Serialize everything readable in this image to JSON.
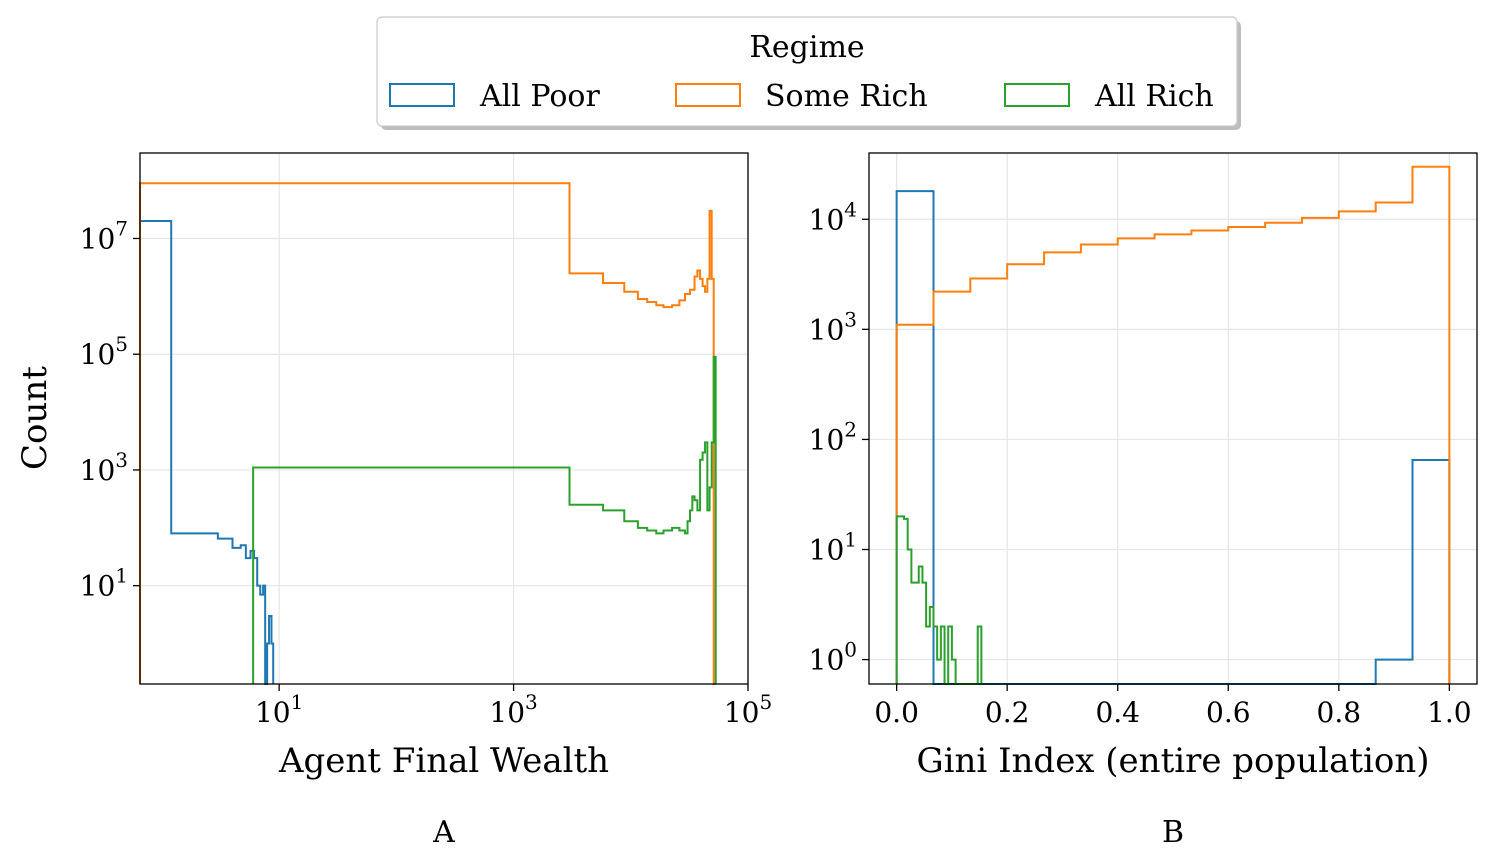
{
  "legend": {
    "title": "Regime",
    "entries": [
      {
        "label": "All Poor",
        "color": "#1f77b4"
      },
      {
        "label": "Some Rich",
        "color": "#ff7f0e"
      },
      {
        "label": "All Rich",
        "color": "#2ca02c"
      }
    ]
  },
  "chart_data": [
    {
      "panel_label": "A",
      "type": "histogram-step",
      "xlabel": "Agent Final Wealth",
      "ylabel": "Count",
      "xscale": "log",
      "yscale": "log",
      "xlim": [
        0.65,
        100000
      ],
      "ylim": [
        0.2,
        300000000
      ],
      "xticks": [
        {
          "value": 10,
          "mant": "10",
          "exp": "1"
        },
        {
          "value": 1000,
          "mant": "10",
          "exp": "3"
        },
        {
          "value": 100000,
          "mant": "10",
          "exp": "5"
        }
      ],
      "yticks": [
        {
          "value": 10,
          "mant": "10",
          "exp": "1"
        },
        {
          "value": 1000,
          "mant": "10",
          "exp": "3"
        },
        {
          "value": 100000,
          "mant": "10",
          "exp": "5"
        },
        {
          "value": 10000000,
          "mant": "10",
          "exp": "7"
        }
      ],
      "grid": true,
      "series": [
        {
          "name": "All Poor",
          "color": "#1f77b4",
          "edges": [
            0.65,
            1.2,
            2.0,
            3.0,
            4.0,
            4.7,
            5.2,
            5.7,
            6.1,
            6.5,
            6.9,
            7.1,
            7.3,
            7.6,
            7.9,
            8.2,
            8.6,
            8.9
          ],
          "counts": [
            20000000,
            80,
            80,
            65,
            45,
            50,
            30,
            40,
            30,
            10,
            7,
            7,
            10,
            0,
            1,
            3,
            1
          ]
        },
        {
          "name": "Some Rich",
          "color": "#ff7f0e",
          "edges": [
            0.65,
            3000,
            5800,
            8800,
            11500,
            13800,
            16500,
            19000,
            22500,
            26000,
            29000,
            32000,
            35000,
            37000,
            39000,
            41000,
            43000,
            45000,
            47000,
            49000,
            51000,
            53000
          ],
          "counts": [
            90000000,
            2500000,
            1700000,
            1200000,
            900000,
            800000,
            700000,
            650000,
            700000,
            850000,
            1100000,
            1300000,
            2200000,
            2800000,
            2000000,
            1500000,
            1200000,
            2000000,
            30000000,
            2000000,
            0
          ]
        },
        {
          "name": "All Rich",
          "color": "#2ca02c",
          "edges": [
            6.0,
            3000,
            5800,
            8800,
            11500,
            13800,
            16500,
            19000,
            22500,
            26000,
            29000,
            30500,
            32000,
            33500,
            35000,
            37000,
            39000,
            41000,
            43000,
            45000,
            47000,
            49000,
            51000,
            53000
          ],
          "counts": [
            1100,
            250,
            200,
            130,
            100,
            90,
            80,
            90,
            100,
            90,
            80,
            130,
            200,
            350,
            300,
            200,
            1500,
            2000,
            3000,
            200,
            500,
            3000,
            90000
          ]
        }
      ]
    },
    {
      "panel_label": "B",
      "type": "histogram-step",
      "xlabel": "Gini Index (entire population)",
      "ylabel": "",
      "xscale": "linear",
      "yscale": "log",
      "xlim": [
        -0.05,
        1.05
      ],
      "ylim": [
        0.6,
        40000
      ],
      "xticks": [
        {
          "value": 0.0,
          "text": "0.0"
        },
        {
          "value": 0.2,
          "text": "0.2"
        },
        {
          "value": 0.4,
          "text": "0.4"
        },
        {
          "value": 0.6,
          "text": "0.6"
        },
        {
          "value": 0.8,
          "text": "0.8"
        },
        {
          "value": 1.0,
          "text": "1.0"
        }
      ],
      "yticks": [
        {
          "value": 1,
          "mant": "10",
          "exp": "0"
        },
        {
          "value": 10,
          "mant": "10",
          "exp": "1"
        },
        {
          "value": 100,
          "mant": "10",
          "exp": "2"
        },
        {
          "value": 1000,
          "mant": "10",
          "exp": "3"
        },
        {
          "value": 10000,
          "mant": "10",
          "exp": "4"
        }
      ],
      "grid": true,
      "series": [
        {
          "name": "All Poor",
          "color": "#1f77b4",
          "edges": [
            0.0,
            0.0667,
            0.1333,
            0.2,
            0.2667,
            0.3333,
            0.4,
            0.4667,
            0.5333,
            0.6,
            0.6667,
            0.7333,
            0.8,
            0.8667,
            0.9333,
            1.0
          ],
          "counts": [
            18000,
            0,
            0,
            0,
            0,
            0,
            0,
            0,
            0,
            0,
            0,
            0,
            0,
            1,
            65
          ]
        },
        {
          "name": "Some Rich",
          "color": "#ff7f0e",
          "edges": [
            0.0,
            0.0667,
            0.1333,
            0.2,
            0.2667,
            0.3333,
            0.4,
            0.4667,
            0.5333,
            0.6,
            0.6667,
            0.7333,
            0.8,
            0.8667,
            0.9333,
            1.0
          ],
          "counts": [
            1100,
            2200,
            2900,
            3900,
            5000,
            5900,
            6700,
            7300,
            7900,
            8500,
            9300,
            10300,
            11800,
            14200,
            30000
          ]
        },
        {
          "name": "All Rich",
          "color": "#2ca02c",
          "edges": [
            0.0,
            0.0067,
            0.0133,
            0.02,
            0.0267,
            0.0333,
            0.04,
            0.0467,
            0.0533,
            0.06,
            0.0667,
            0.0733,
            0.08,
            0.0867,
            0.0933,
            0.1,
            0.1067,
            0.1133,
            0.12,
            0.1267,
            0.1333,
            0.14,
            0.1467,
            0.1533
          ],
          "counts": [
            20,
            20,
            19,
            10,
            5,
            5,
            7,
            5,
            2,
            3,
            2,
            1,
            2,
            0,
            2,
            1,
            0,
            0,
            0,
            0,
            0,
            0,
            2
          ]
        }
      ]
    }
  ]
}
